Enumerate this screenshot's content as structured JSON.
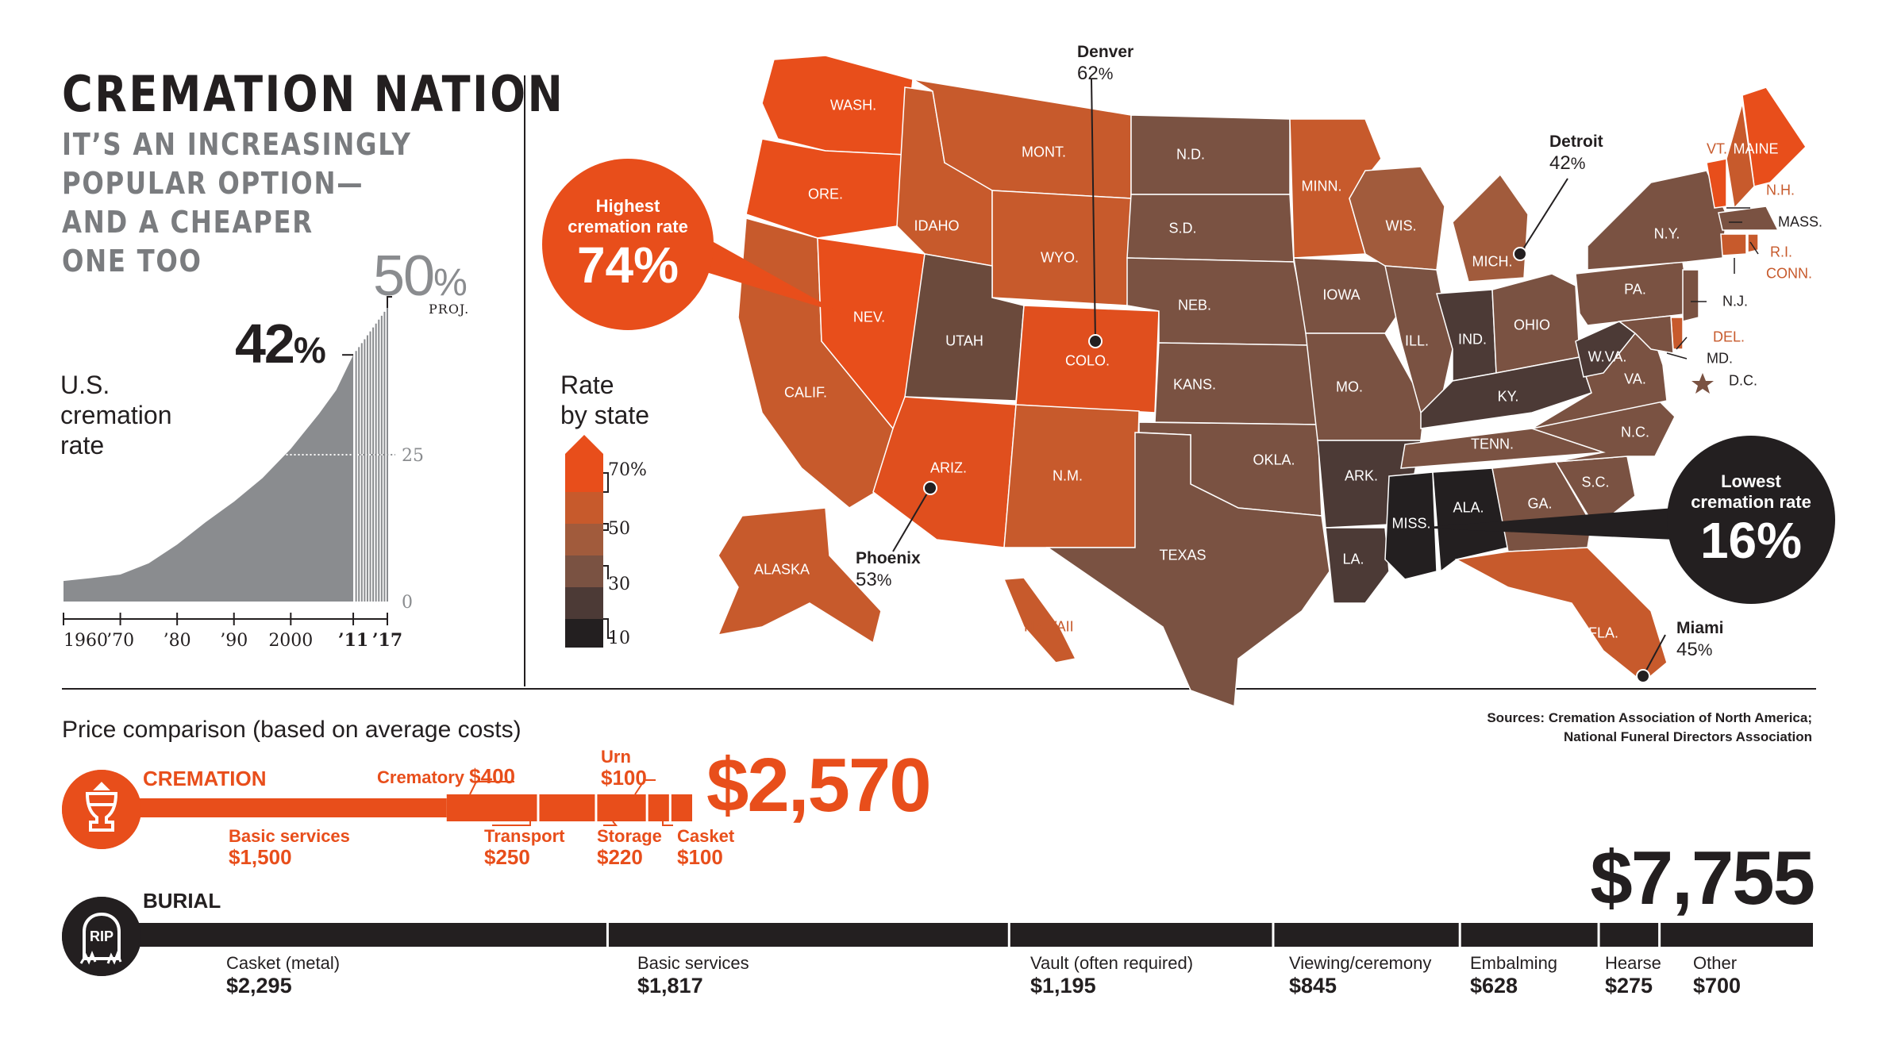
{
  "header": {
    "title": "CREMATION NATION",
    "subtitle_lines": [
      "IT’S AN INCREASINGLY",
      "POPULAR OPTION—",
      "AND A CHEAPER",
      "ONE TOO"
    ]
  },
  "colors": {
    "accent": "#e84e1b",
    "dark": "#231f20",
    "gray": "#8a8c8f",
    "scale": [
      "#e84e1b",
      "#c75a2c",
      "#a15b3c",
      "#7a5242",
      "#4c3a36",
      "#231f20"
    ]
  },
  "trend": {
    "label_lines": [
      "U.S.",
      "cremation",
      "rate"
    ],
    "callout_2011": "42",
    "callout_proj": "50",
    "pct_sign": "%",
    "proj_label": "PROJ.",
    "x_ticks": [
      "1960",
      "’70",
      "’80",
      "’90",
      "2000",
      "’11",
      "’17"
    ],
    "y_ticks": [
      "25",
      "0"
    ]
  },
  "chart_data": [
    {
      "type": "area",
      "title": "U.S. cremation rate",
      "x": [
        1960,
        1965,
        1970,
        1975,
        1980,
        1985,
        1990,
        1995,
        2000,
        2005,
        2008,
        2011,
        2017
      ],
      "y": [
        3.5,
        4,
        4.6,
        6.5,
        9.7,
        13.5,
        17,
        21,
        26,
        32,
        36,
        42,
        50
      ],
      "projected_from": 2011,
      "ylim": [
        0,
        50
      ],
      "y_ticks": [
        0,
        25
      ],
      "annotations": [
        {
          "x": 2011,
          "label": "42%"
        },
        {
          "x": 2017,
          "label": "50% PROJ."
        }
      ]
    },
    {
      "type": "table",
      "title": "Rate by state",
      "legend_ticks": [
        "70%",
        "50",
        "30",
        "10"
      ],
      "highest": {
        "label": "Highest cremation rate",
        "value": 74,
        "state": "NEV."
      },
      "lowest": {
        "label": "Lowest cremation rate",
        "value": 16,
        "state": "MISS."
      },
      "cities": [
        {
          "name": "Denver",
          "value": 62
        },
        {
          "name": "Detroit",
          "value": 42
        },
        {
          "name": "Phoenix",
          "value": 53
        },
        {
          "name": "Miami",
          "value": 45
        }
      ]
    },
    {
      "type": "bar",
      "title": "Price comparison (based on average costs)",
      "series": [
        {
          "name": "CREMATION",
          "total": 2570,
          "categories": [
            "Basic services",
            "Crematory",
            "Transport",
            "Storage",
            "Urn",
            "Casket"
          ],
          "values": [
            1500,
            400,
            250,
            220,
            100,
            100
          ]
        },
        {
          "name": "BURIAL",
          "total": 7755,
          "categories": [
            "Casket (metal)",
            "Basic services",
            "Vault (often required)",
            "Viewing/ceremony",
            "Embalming",
            "Hearse",
            "Other"
          ],
          "values": [
            2295,
            1817,
            1195,
            845,
            628,
            275,
            700
          ]
        }
      ]
    }
  ],
  "map": {
    "legend_title_lines": [
      "Rate",
      "by state"
    ],
    "legend_ticks": [
      "70%",
      "50",
      "30",
      "10"
    ],
    "highest": {
      "cap_lines": [
        "Highest",
        "cremation rate"
      ],
      "value": "74%"
    },
    "lowest": {
      "cap_lines": [
        "Lowest",
        "cremation rate"
      ],
      "value": "16%"
    },
    "cities": {
      "denver": {
        "name": "Denver",
        "value": "62",
        "pct": "%"
      },
      "detroit": {
        "name": "Detroit",
        "value": "42",
        "pct": "%"
      },
      "phoenix": {
        "name": "Phoenix",
        "value": "53",
        "pct": "%"
      },
      "miami": {
        "name": "Miami",
        "value": "45",
        "pct": "%"
      }
    },
    "states": [
      {
        "abbr": "WASH.",
        "fill": "#e84e1b"
      },
      {
        "abbr": "ORE.",
        "fill": "#e84e1b"
      },
      {
        "abbr": "NEV.",
        "fill": "#e84e1b"
      },
      {
        "abbr": "CALIF.",
        "fill": "#c75a2c"
      },
      {
        "abbr": "IDAHO",
        "fill": "#c75a2c"
      },
      {
        "abbr": "MONT.",
        "fill": "#c75a2c"
      },
      {
        "abbr": "WYO.",
        "fill": "#c75a2c"
      },
      {
        "abbr": "UTAH",
        "fill": "#6b4a3c"
      },
      {
        "abbr": "COLO.",
        "fill": "#e04f1e"
      },
      {
        "abbr": "ARIZ.",
        "fill": "#e04f1e"
      },
      {
        "abbr": "N.M.",
        "fill": "#c75a2c"
      },
      {
        "abbr": "N.D.",
        "fill": "#7a5242"
      },
      {
        "abbr": "S.D.",
        "fill": "#7a5242"
      },
      {
        "abbr": "NEB.",
        "fill": "#7a5242"
      },
      {
        "abbr": "KANS.",
        "fill": "#7a5242"
      },
      {
        "abbr": "OKLA.",
        "fill": "#7a5242"
      },
      {
        "abbr": "TEXAS",
        "fill": "#7a5242"
      },
      {
        "abbr": "MINN.",
        "fill": "#c75a2c"
      },
      {
        "abbr": "IOWA",
        "fill": "#7a5242"
      },
      {
        "abbr": "MO.",
        "fill": "#7a5242"
      },
      {
        "abbr": "ARK.",
        "fill": "#4c3a36"
      },
      {
        "abbr": "LA.",
        "fill": "#4c3a36"
      },
      {
        "abbr": "WIS.",
        "fill": "#a15b3c"
      },
      {
        "abbr": "ILL.",
        "fill": "#7a5242"
      },
      {
        "abbr": "MICH.",
        "fill": "#a15b3c"
      },
      {
        "abbr": "IND.",
        "fill": "#4c3a36"
      },
      {
        "abbr": "OHIO",
        "fill": "#7a5242"
      },
      {
        "abbr": "KY.",
        "fill": "#4c3a36"
      },
      {
        "abbr": "TENN.",
        "fill": "#7a5242"
      },
      {
        "abbr": "MISS.",
        "fill": "#231f20"
      },
      {
        "abbr": "ALA.",
        "fill": "#231f20"
      },
      {
        "abbr": "GA.",
        "fill": "#7a5242"
      },
      {
        "abbr": "FLA.",
        "fill": "#c75a2c"
      },
      {
        "abbr": "S.C.",
        "fill": "#7a5242"
      },
      {
        "abbr": "N.C.",
        "fill": "#7a5242"
      },
      {
        "abbr": "VA.",
        "fill": "#7a5242"
      },
      {
        "abbr": "W.VA.",
        "fill": "#4c3a36"
      },
      {
        "abbr": "PA.",
        "fill": "#7a5242"
      },
      {
        "abbr": "N.Y.",
        "fill": "#7a5242"
      },
      {
        "abbr": "VT.",
        "fill": "#e84e1b"
      },
      {
        "abbr": "MAINE",
        "fill": "#e84e1b"
      },
      {
        "abbr": "N.H.",
        "fill": "#c75a2c"
      },
      {
        "abbr": "MASS.",
        "fill": "#7a5242"
      },
      {
        "abbr": "R.I.",
        "fill": "#c75a2c"
      },
      {
        "abbr": "CONN.",
        "fill": "#c75a2c"
      },
      {
        "abbr": "N.J.",
        "fill": "#7a5242"
      },
      {
        "abbr": "DEL.",
        "fill": "#c75a2c"
      },
      {
        "abbr": "MD.",
        "fill": "#7a5242"
      },
      {
        "abbr": "D.C.",
        "fill": "#7a5242"
      },
      {
        "abbr": "ALASKA",
        "fill": "#c75a2c"
      },
      {
        "abbr": "HAWAII",
        "fill": "#c75a2c"
      }
    ]
  },
  "sources": {
    "line1": "Sources: Cremation Association of North America;",
    "line2": "National Funeral Directors Association"
  },
  "prices": {
    "title": "Price comparison (based on average costs)",
    "cremation": {
      "label": "CREMATION",
      "total": "$2,570",
      "items": [
        {
          "name": "Basic services",
          "amount": "$1,500"
        },
        {
          "name": "Crematory",
          "amount": "$400"
        },
        {
          "name": "Transport",
          "amount": "$250"
        },
        {
          "name": "Storage",
          "amount": "$220"
        },
        {
          "name": "Urn",
          "amount": "$100"
        },
        {
          "name": "Casket",
          "amount": "$100"
        }
      ]
    },
    "burial": {
      "label": "BURIAL",
      "total": "$7,755",
      "icon_text": "RIP",
      "items": [
        {
          "name": "Casket (metal)",
          "amount": "$2,295"
        },
        {
          "name": "Basic services",
          "amount": "$1,817"
        },
        {
          "name": "Vault (often required)",
          "amount": "$1,195"
        },
        {
          "name": "Viewing/ceremony",
          "amount": "$845"
        },
        {
          "name": "Embalming",
          "amount": "$628"
        },
        {
          "name": "Hearse",
          "amount": "$275"
        },
        {
          "name": "Other",
          "amount": "$700"
        }
      ]
    }
  }
}
